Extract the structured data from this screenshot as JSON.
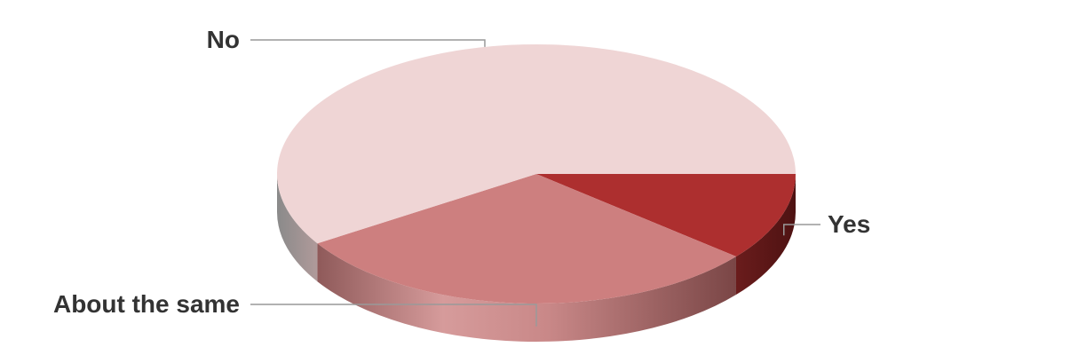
{
  "chart_data": {
    "type": "pie",
    "style": "3d",
    "title": "",
    "slices": [
      {
        "label": "Yes",
        "value": 11,
        "color": "#ad2f2f"
      },
      {
        "label": "About the same",
        "value": 30,
        "color": "#cd7f7f"
      },
      {
        "label": "No",
        "value": 59,
        "color": "#efd5d5"
      }
    ],
    "legend": "none",
    "label_placement": "outside with leader lines"
  }
}
